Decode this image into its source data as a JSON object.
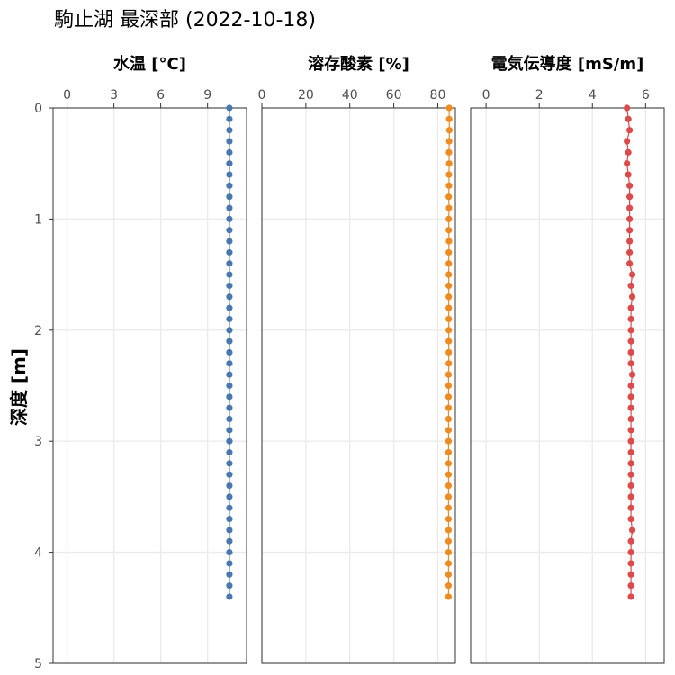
{
  "page_title": "駒止湖 最深部 (2022-10-18)",
  "y_axis_title": "深度 [m]",
  "chart_data": {
    "type": "scatter",
    "title": "駒止湖 最深部 (2022-10-18)",
    "ylabel": "深度 [m]",
    "ylim": [
      0,
      5
    ],
    "y_reversed": true,
    "y_ticks": [
      0,
      1,
      2,
      3,
      4,
      5
    ],
    "grid": true,
    "panels": [
      {
        "title": "水温 [°C]",
        "color": "#4a78ae",
        "xlim": [
          -0.9,
          11.5
        ],
        "x_ticks": [
          0,
          3,
          6,
          9
        ],
        "depth": [
          0,
          0.1,
          0.2,
          0.3,
          0.4,
          0.5,
          0.6,
          0.7,
          0.8,
          0.9,
          1.0,
          1.1,
          1.2,
          1.3,
          1.4,
          1.5,
          1.6,
          1.7,
          1.8,
          1.9,
          2.0,
          2.1,
          2.2,
          2.3,
          2.4,
          2.5,
          2.6,
          2.7,
          2.8,
          2.9,
          3.0,
          3.1,
          3.2,
          3.3,
          3.4,
          3.5,
          3.6,
          3.7,
          3.8,
          3.9,
          4.0,
          4.1,
          4.2,
          4.3,
          4.4
        ],
        "values": [
          10.4,
          10.4,
          10.4,
          10.4,
          10.4,
          10.4,
          10.4,
          10.4,
          10.4,
          10.4,
          10.4,
          10.4,
          10.4,
          10.4,
          10.4,
          10.4,
          10.4,
          10.4,
          10.4,
          10.4,
          10.4,
          10.4,
          10.4,
          10.4,
          10.4,
          10.4,
          10.4,
          10.4,
          10.4,
          10.4,
          10.4,
          10.4,
          10.4,
          10.4,
          10.4,
          10.4,
          10.4,
          10.4,
          10.4,
          10.4,
          10.4,
          10.4,
          10.4,
          10.4,
          10.4
        ]
      },
      {
        "title": "溶存酸素 [%]",
        "color": "#ee8b22",
        "xlim": [
          0,
          88
        ],
        "x_ticks": [
          0,
          20,
          40,
          60,
          80
        ],
        "depth": [
          0,
          0.1,
          0.2,
          0.3,
          0.4,
          0.5,
          0.6,
          0.7,
          0.8,
          0.9,
          1.0,
          1.1,
          1.2,
          1.3,
          1.4,
          1.5,
          1.6,
          1.7,
          1.8,
          1.9,
          2.0,
          2.1,
          2.2,
          2.3,
          2.4,
          2.5,
          2.6,
          2.7,
          2.8,
          2.9,
          3.0,
          3.1,
          3.2,
          3.3,
          3.4,
          3.5,
          3.6,
          3.7,
          3.8,
          3.9,
          4.0,
          4.1,
          4.2,
          4.3,
          4.4
        ],
        "values": [
          85.2,
          85.2,
          85.3,
          85.2,
          85.1,
          85.2,
          85.1,
          85.1,
          85.0,
          85.1,
          85.0,
          85.0,
          85.1,
          85.0,
          85.0,
          85.0,
          85.0,
          85.0,
          85.0,
          85.0,
          85.0,
          85.0,
          85.0,
          85.0,
          84.9,
          84.9,
          84.9,
          84.9,
          84.9,
          84.9,
          84.9,
          84.9,
          84.9,
          84.9,
          84.9,
          84.9,
          84.9,
          84.9,
          84.9,
          84.9,
          84.9,
          84.9,
          84.9,
          84.9,
          84.9
        ]
      },
      {
        "title": "電気伝導度 [mS/m]",
        "color": "#dc4b4b",
        "xlim": [
          -0.58,
          6.7
        ],
        "x_ticks": [
          0,
          2,
          4,
          6
        ],
        "depth": [
          0,
          0.1,
          0.2,
          0.3,
          0.4,
          0.5,
          0.6,
          0.7,
          0.8,
          0.9,
          1.0,
          1.1,
          1.2,
          1.3,
          1.4,
          1.5,
          1.6,
          1.7,
          1.8,
          1.9,
          2.0,
          2.1,
          2.2,
          2.3,
          2.4,
          2.5,
          2.6,
          2.7,
          2.8,
          2.9,
          3.0,
          3.1,
          3.2,
          3.3,
          3.4,
          3.5,
          3.6,
          3.7,
          3.8,
          3.9,
          4.0,
          4.1,
          4.2,
          4.3,
          4.4
        ],
        "values": [
          5.3,
          5.35,
          5.4,
          5.3,
          5.35,
          5.3,
          5.35,
          5.4,
          5.4,
          5.4,
          5.4,
          5.4,
          5.4,
          5.4,
          5.4,
          5.5,
          5.45,
          5.5,
          5.45,
          5.45,
          5.45,
          5.45,
          5.45,
          5.45,
          5.5,
          5.45,
          5.45,
          5.45,
          5.45,
          5.45,
          5.45,
          5.45,
          5.45,
          5.45,
          5.45,
          5.45,
          5.45,
          5.45,
          5.5,
          5.45,
          5.45,
          5.45,
          5.45,
          5.45,
          5.45
        ]
      }
    ]
  }
}
